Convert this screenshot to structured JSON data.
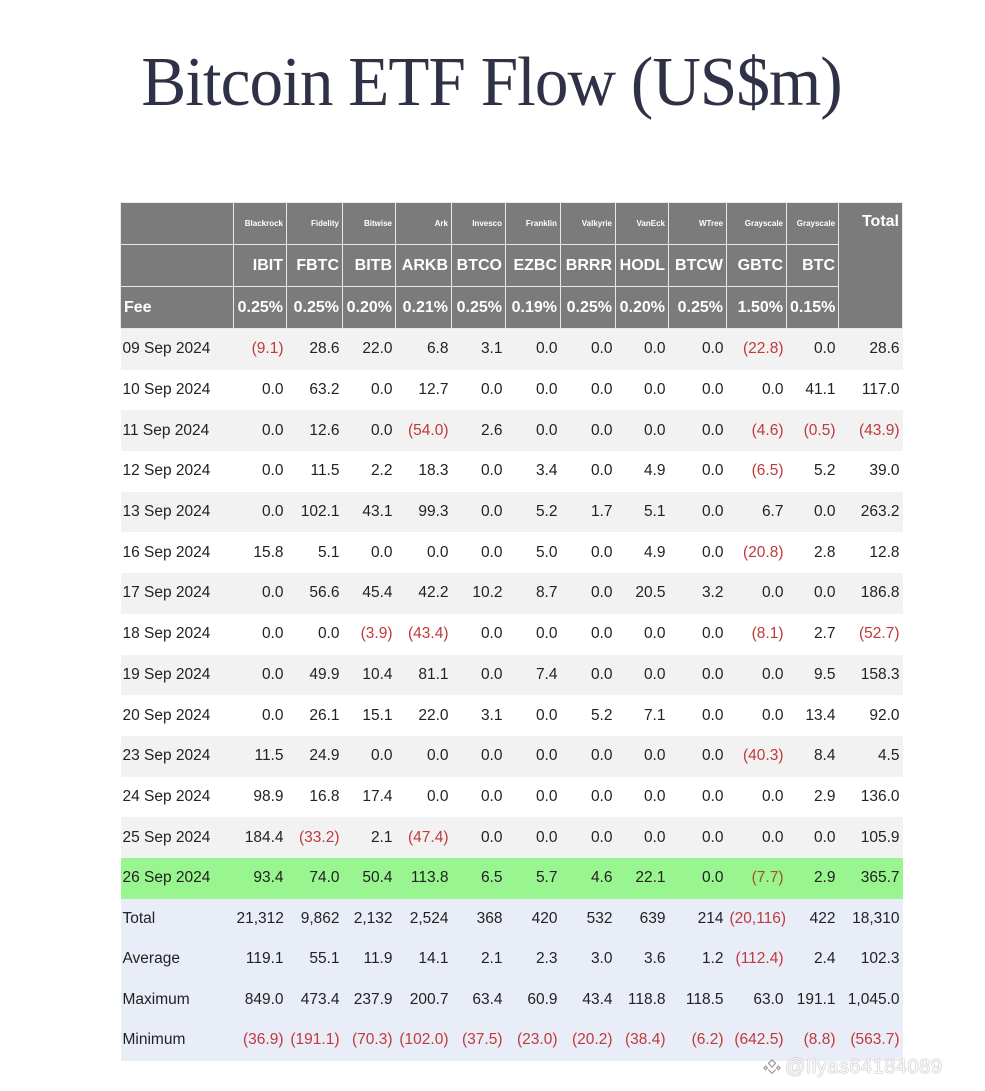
{
  "title": "Bitcoin ETF Flow (US$m)",
  "table": {
    "issuers": [
      "Blackrock",
      "Fidelity",
      "Bitwise",
      "Ark",
      "Invesco",
      "Franklin",
      "Valkyrie",
      "VanEck",
      "WTree",
      "Grayscale",
      "Grayscale"
    ],
    "tickers": [
      "IBIT",
      "FBTC",
      "BITB",
      "ARKB",
      "BTCO",
      "EZBC",
      "BRRR",
      "HODL",
      "BTCW",
      "GBTC",
      "BTC"
    ],
    "total_header": "Total",
    "fee_label": "Fee",
    "fees": [
      "0.25%",
      "0.25%",
      "0.20%",
      "0.21%",
      "0.25%",
      "0.19%",
      "0.25%",
      "0.20%",
      "0.25%",
      "1.50%",
      "0.15%"
    ],
    "rows": [
      {
        "date": "09 Sep 2024",
        "values": [
          "(9.1)",
          "28.6",
          "22.0",
          "6.8",
          "3.1",
          "0.0",
          "0.0",
          "0.0",
          "0.0",
          "(22.8)",
          "0.0",
          "28.6"
        ]
      },
      {
        "date": "10 Sep 2024",
        "values": [
          "0.0",
          "63.2",
          "0.0",
          "12.7",
          "0.0",
          "0.0",
          "0.0",
          "0.0",
          "0.0",
          "0.0",
          "41.1",
          "117.0"
        ]
      },
      {
        "date": "11 Sep 2024",
        "values": [
          "0.0",
          "12.6",
          "0.0",
          "(54.0)",
          "2.6",
          "0.0",
          "0.0",
          "0.0",
          "0.0",
          "(4.6)",
          "(0.5)",
          "(43.9)"
        ]
      },
      {
        "date": "12 Sep 2024",
        "values": [
          "0.0",
          "11.5",
          "2.2",
          "18.3",
          "0.0",
          "3.4",
          "0.0",
          "4.9",
          "0.0",
          "(6.5)",
          "5.2",
          "39.0"
        ]
      },
      {
        "date": "13 Sep 2024",
        "values": [
          "0.0",
          "102.1",
          "43.1",
          "99.3",
          "0.0",
          "5.2",
          "1.7",
          "5.1",
          "0.0",
          "6.7",
          "0.0",
          "263.2"
        ]
      },
      {
        "date": "16 Sep 2024",
        "values": [
          "15.8",
          "5.1",
          "0.0",
          "0.0",
          "0.0",
          "5.0",
          "0.0",
          "4.9",
          "0.0",
          "(20.8)",
          "2.8",
          "12.8"
        ]
      },
      {
        "date": "17 Sep 2024",
        "values": [
          "0.0",
          "56.6",
          "45.4",
          "42.2",
          "10.2",
          "8.7",
          "0.0",
          "20.5",
          "3.2",
          "0.0",
          "0.0",
          "186.8"
        ]
      },
      {
        "date": "18 Sep 2024",
        "values": [
          "0.0",
          "0.0",
          "(3.9)",
          "(43.4)",
          "0.0",
          "0.0",
          "0.0",
          "0.0",
          "0.0",
          "(8.1)",
          "2.7",
          "(52.7)"
        ]
      },
      {
        "date": "19 Sep 2024",
        "values": [
          "0.0",
          "49.9",
          "10.4",
          "81.1",
          "0.0",
          "7.4",
          "0.0",
          "0.0",
          "0.0",
          "0.0",
          "9.5",
          "158.3"
        ]
      },
      {
        "date": "20 Sep 2024",
        "values": [
          "0.0",
          "26.1",
          "15.1",
          "22.0",
          "3.1",
          "0.0",
          "5.2",
          "7.1",
          "0.0",
          "0.0",
          "13.4",
          "92.0"
        ]
      },
      {
        "date": "23 Sep 2024",
        "values": [
          "11.5",
          "24.9",
          "0.0",
          "0.0",
          "0.0",
          "0.0",
          "0.0",
          "0.0",
          "0.0",
          "(40.3)",
          "8.4",
          "4.5"
        ]
      },
      {
        "date": "24 Sep 2024",
        "values": [
          "98.9",
          "16.8",
          "17.4",
          "0.0",
          "0.0",
          "0.0",
          "0.0",
          "0.0",
          "0.0",
          "0.0",
          "2.9",
          "136.0"
        ]
      },
      {
        "date": "25 Sep 2024",
        "values": [
          "184.4",
          "(33.2)",
          "2.1",
          "(47.4)",
          "0.0",
          "0.0",
          "0.0",
          "0.0",
          "0.0",
          "0.0",
          "0.0",
          "105.9"
        ]
      },
      {
        "date": "26 Sep 2024",
        "values": [
          "93.4",
          "74.0",
          "50.4",
          "113.8",
          "6.5",
          "5.7",
          "4.6",
          "22.1",
          "0.0",
          "(7.7)",
          "2.9",
          "365.7"
        ],
        "highlight": true
      }
    ],
    "summary": [
      {
        "label": "Total",
        "values": [
          "21,312",
          "9,862",
          "2,132",
          "2,524",
          "368",
          "420",
          "532",
          "639",
          "214",
          "(20,116)",
          "422",
          "18,310"
        ]
      },
      {
        "label": "Average",
        "values": [
          "119.1",
          "55.1",
          "11.9",
          "14.1",
          "2.1",
          "2.3",
          "3.0",
          "3.6",
          "1.2",
          "(112.4)",
          "2.4",
          "102.3"
        ]
      },
      {
        "label": "Maximum",
        "values": [
          "849.0",
          "473.4",
          "237.9",
          "200.7",
          "63.4",
          "60.9",
          "43.4",
          "118.8",
          "118.5",
          "63.0",
          "191.1",
          "1,045.0"
        ]
      },
      {
        "label": "Minimum",
        "values": [
          "(36.9)",
          "(191.1)",
          "(70.3)",
          "(102.0)",
          "(37.5)",
          "(23.0)",
          "(20.2)",
          "(38.4)",
          "(6.2)",
          "(642.5)",
          "(8.8)",
          "(563.7)"
        ]
      }
    ]
  },
  "watermark": "@Ilyas64184089",
  "colors": {
    "header_bg": "#7b7b7b",
    "negative": "#c0393b",
    "highlight_row": "#99f58f",
    "summary_bg": "#e9edf7",
    "title": "#2f3246"
  },
  "chart_data": {
    "type": "table",
    "title": "Bitcoin ETF Flow (US$m)",
    "columns": [
      "IBIT",
      "FBTC",
      "BITB",
      "ARKB",
      "BTCO",
      "EZBC",
      "BRRR",
      "HODL",
      "BTCW",
      "GBTC",
      "BTC",
      "Total"
    ],
    "issuers": [
      "Blackrock",
      "Fidelity",
      "Bitwise",
      "Ark",
      "Invesco",
      "Franklin",
      "Valkyrie",
      "VanEck",
      "WTree",
      "Grayscale",
      "Grayscale"
    ],
    "fees": [
      0.25,
      0.25,
      0.2,
      0.21,
      0.25,
      0.19,
      0.25,
      0.2,
      0.25,
      1.5,
      0.15
    ],
    "categories": [
      "09 Sep 2024",
      "10 Sep 2024",
      "11 Sep 2024",
      "12 Sep 2024",
      "13 Sep 2024",
      "16 Sep 2024",
      "17 Sep 2024",
      "18 Sep 2024",
      "19 Sep 2024",
      "20 Sep 2024",
      "23 Sep 2024",
      "24 Sep 2024",
      "25 Sep 2024",
      "26 Sep 2024"
    ],
    "series": [
      {
        "name": "IBIT",
        "values": [
          -9.1,
          0.0,
          0.0,
          0.0,
          0.0,
          15.8,
          0.0,
          0.0,
          0.0,
          0.0,
          11.5,
          98.9,
          184.4,
          93.4
        ]
      },
      {
        "name": "FBTC",
        "values": [
          28.6,
          63.2,
          12.6,
          11.5,
          102.1,
          5.1,
          56.6,
          0.0,
          49.9,
          26.1,
          24.9,
          16.8,
          -33.2,
          74.0
        ]
      },
      {
        "name": "BITB",
        "values": [
          22.0,
          0.0,
          0.0,
          2.2,
          43.1,
          0.0,
          45.4,
          -3.9,
          10.4,
          15.1,
          0.0,
          17.4,
          2.1,
          50.4
        ]
      },
      {
        "name": "ARKB",
        "values": [
          6.8,
          12.7,
          -54.0,
          18.3,
          99.3,
          0.0,
          42.2,
          -43.4,
          81.1,
          22.0,
          0.0,
          0.0,
          -47.4,
          113.8
        ]
      },
      {
        "name": "BTCO",
        "values": [
          3.1,
          0.0,
          2.6,
          0.0,
          0.0,
          0.0,
          10.2,
          0.0,
          0.0,
          3.1,
          0.0,
          0.0,
          0.0,
          6.5
        ]
      },
      {
        "name": "EZBC",
        "values": [
          0.0,
          0.0,
          0.0,
          3.4,
          5.2,
          5.0,
          8.7,
          0.0,
          7.4,
          0.0,
          0.0,
          0.0,
          0.0,
          5.7
        ]
      },
      {
        "name": "BRRR",
        "values": [
          0.0,
          0.0,
          0.0,
          0.0,
          1.7,
          0.0,
          0.0,
          0.0,
          0.0,
          5.2,
          0.0,
          0.0,
          0.0,
          4.6
        ]
      },
      {
        "name": "HODL",
        "values": [
          0.0,
          0.0,
          0.0,
          4.9,
          5.1,
          4.9,
          20.5,
          0.0,
          0.0,
          7.1,
          0.0,
          0.0,
          0.0,
          22.1
        ]
      },
      {
        "name": "BTCW",
        "values": [
          0.0,
          0.0,
          0.0,
          0.0,
          0.0,
          0.0,
          3.2,
          0.0,
          0.0,
          0.0,
          0.0,
          0.0,
          0.0,
          0.0
        ]
      },
      {
        "name": "GBTC",
        "values": [
          -22.8,
          0.0,
          -4.6,
          -6.5,
          6.7,
          -20.8,
          0.0,
          -8.1,
          0.0,
          0.0,
          -40.3,
          0.0,
          0.0,
          -7.7
        ]
      },
      {
        "name": "BTC",
        "values": [
          0.0,
          41.1,
          -0.5,
          5.2,
          0.0,
          2.8,
          0.0,
          2.7,
          9.5,
          13.4,
          8.4,
          2.9,
          0.0,
          2.9
        ]
      },
      {
        "name": "Total",
        "values": [
          28.6,
          117.0,
          -43.9,
          39.0,
          263.2,
          12.8,
          186.8,
          -52.7,
          158.3,
          92.0,
          4.5,
          136.0,
          105.9,
          365.7
        ]
      }
    ],
    "summary": {
      "Total": [
        21312,
        9862,
        2132,
        2524,
        368,
        420,
        532,
        639,
        214,
        -20116,
        422,
        18310
      ],
      "Average": [
        119.1,
        55.1,
        11.9,
        14.1,
        2.1,
        2.3,
        3.0,
        3.6,
        1.2,
        -112.4,
        2.4,
        102.3
      ],
      "Maximum": [
        849.0,
        473.4,
        237.9,
        200.7,
        63.4,
        60.9,
        43.4,
        118.8,
        118.5,
        63.0,
        191.1,
        1045.0
      ],
      "Minimum": [
        -36.9,
        -191.1,
        -70.3,
        -102.0,
        -37.5,
        -23.0,
        -20.2,
        -38.4,
        -6.2,
        -642.5,
        -8.8,
        -563.7
      ]
    },
    "highlighted_row": "26 Sep 2024",
    "xlabel": "",
    "ylabel": "US$m"
  }
}
